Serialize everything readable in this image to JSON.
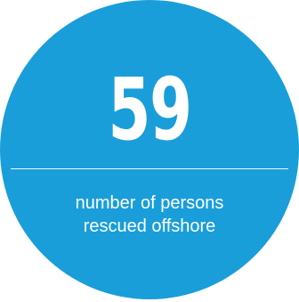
{
  "stat": {
    "value": "59",
    "caption_line1": "number of persons",
    "caption_line2": "rescued offshore"
  },
  "colors": {
    "circle": "#1a9ed9",
    "text": "#ffffff",
    "background": "#ffffff"
  }
}
